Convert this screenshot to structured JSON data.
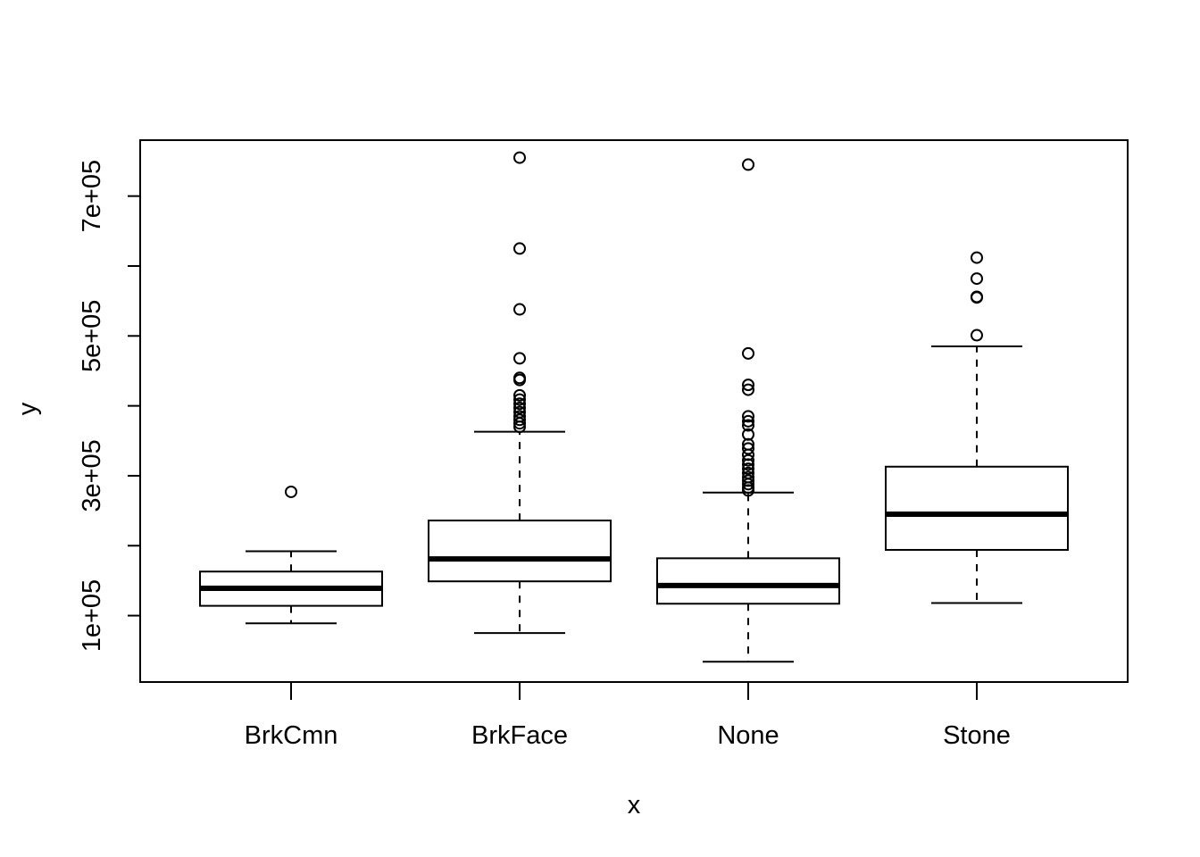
{
  "chart_data": {
    "type": "box",
    "xlabel": "x",
    "ylabel": "y",
    "ylim": [
      5000,
      780000
    ],
    "yticks": [
      {
        "value": 100000,
        "label": "1e+05"
      },
      {
        "value": 200000,
        "label": ""
      },
      {
        "value": 300000,
        "label": "3e+05"
      },
      {
        "value": 400000,
        "label": ""
      },
      {
        "value": 500000,
        "label": "5e+05"
      },
      {
        "value": 600000,
        "label": ""
      },
      {
        "value": 700000,
        "label": "7e+05"
      }
    ],
    "categories": [
      "BrkCmn",
      "BrkFace",
      "None",
      "Stone"
    ],
    "boxes": [
      {
        "category": "BrkCmn",
        "lower_whisker": 89000,
        "q1": 114000,
        "median": 139000,
        "q3": 163000,
        "upper_whisker": 192000,
        "outliers": [
          277000
        ]
      },
      {
        "category": "BrkFace",
        "lower_whisker": 75000,
        "q1": 149000,
        "median": 181000,
        "q3": 236000,
        "upper_whisker": 363000,
        "outliers": [
          755000,
          625000,
          538000,
          468000,
          440000,
          437000,
          415000,
          409000,
          403000,
          397000,
          391000,
          385000,
          380000,
          375000,
          370000
        ]
      },
      {
        "category": "None",
        "lower_whisker": 34000,
        "q1": 117000,
        "median": 143000,
        "q3": 182000,
        "upper_whisker": 276000,
        "outliers": [
          745000,
          475000,
          430000,
          423000,
          385000,
          378000,
          372000,
          359000,
          345000,
          339000,
          330000,
          322000,
          316000,
          310000,
          304000,
          298000,
          293000,
          288000,
          283000,
          279000
        ]
      },
      {
        "category": "Stone",
        "lower_whisker": 118000,
        "q1": 194000,
        "median": 245000,
        "q3": 313000,
        "upper_whisker": 485000,
        "outliers": [
          612000,
          582000,
          556000,
          555000,
          501000
        ]
      }
    ]
  }
}
